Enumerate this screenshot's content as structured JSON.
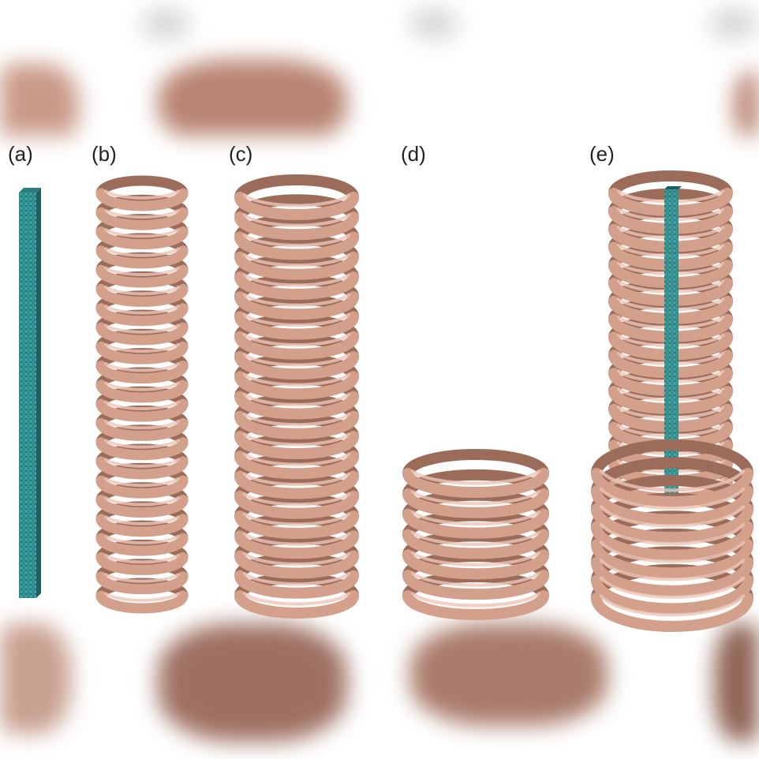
{
  "figure": {
    "panels": [
      {
        "label": "(a)",
        "content": "mesh bar"
      },
      {
        "label": "(b)",
        "content": "tilted coil"
      },
      {
        "label": "(c)",
        "content": "tall coil"
      },
      {
        "label": "(d)",
        "content": "short coil"
      },
      {
        "label": "(e)",
        "content": "combined coils with bar"
      }
    ]
  },
  "colors": {
    "coil": "#d3a08c",
    "coil_highlight": "#ecc6b6",
    "coil_shadow": "#9c6c5b",
    "mesh": "#3aa6a6",
    "mesh_dark": "#1f5f60",
    "background": "#ffffff",
    "blur_band": "#c9a090"
  }
}
